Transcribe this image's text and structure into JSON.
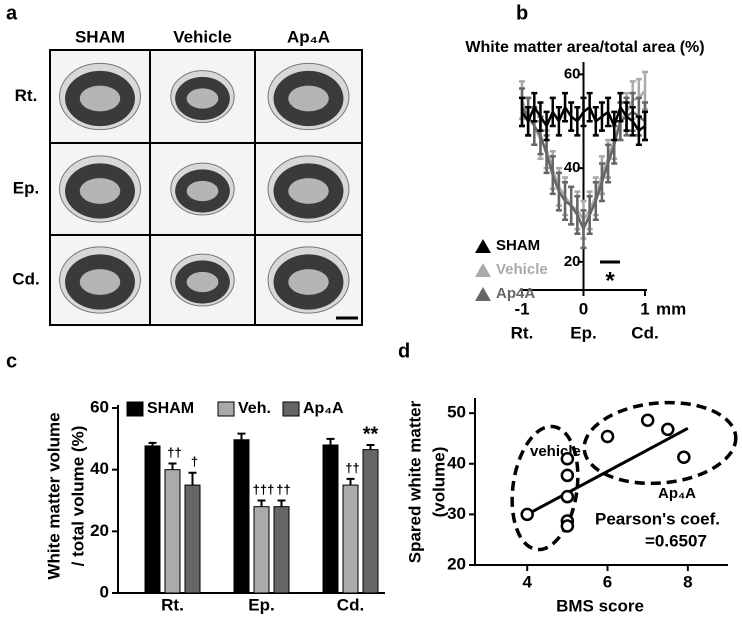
{
  "figure": {
    "panel_labels": [
      "a",
      "b",
      "c",
      "d"
    ],
    "micrographs": {
      "columns": [
        "SHAM",
        "Vehicle",
        "Ap₄A"
      ],
      "rows": [
        "Rt.",
        "Ep.",
        "Cd."
      ]
    }
  },
  "chart_data": [
    {
      "type": "line",
      "title": "White matter area/total area (%)",
      "x": [
        -1,
        -0.9,
        -0.8,
        -0.7,
        -0.6,
        -0.5,
        -0.4,
        -0.3,
        -0.2,
        -0.1,
        0,
        0.1,
        0.2,
        0.3,
        0.4,
        0.5,
        0.6,
        0.7,
        0.8,
        0.9,
        1
      ],
      "xlim": [
        -1,
        1
      ],
      "xticks": [
        -1,
        0,
        1
      ],
      "xlabel": "mm",
      "x_region_labels": [
        "Rt.",
        "Ep.",
        "Cd."
      ],
      "ylim": [
        14,
        62
      ],
      "yticks": [
        20,
        40,
        60
      ],
      "annotation": "*",
      "series": [
        {
          "name": "SHAM",
          "color": "#000000",
          "values": [
            52,
            50,
            53,
            51,
            49,
            52,
            50,
            53,
            51,
            50,
            52,
            53,
            50,
            51,
            52,
            49,
            53,
            51,
            50,
            48,
            49
          ],
          "errors": [
            3,
            3,
            3,
            3,
            3,
            3,
            3,
            3,
            3,
            3,
            3,
            3,
            3,
            3,
            3,
            3,
            3,
            3,
            3,
            3,
            3
          ]
        },
        {
          "name": "Vehicle",
          "color": "#aaaaaa",
          "values": [
            54.5,
            51,
            49,
            46,
            44,
            39.6,
            36,
            34,
            32,
            31,
            29,
            31,
            34,
            38.5,
            42,
            46,
            50,
            52,
            54.5,
            55,
            56.5
          ],
          "errors": [
            4,
            4,
            4,
            4,
            4,
            4,
            4,
            4,
            4,
            4,
            4,
            4,
            4,
            4,
            4,
            4,
            4,
            4,
            4,
            4,
            4
          ]
        },
        {
          "name": "Ap4A",
          "color": "#666666",
          "values": [
            53,
            51,
            49,
            47,
            43,
            38.5,
            35,
            33,
            32,
            30,
            27,
            30,
            33,
            37,
            41,
            45,
            50,
            51,
            52,
            51,
            50
          ],
          "errors": [
            4,
            4,
            4,
            4,
            4,
            4,
            4,
            4,
            4,
            4,
            4,
            4,
            4,
            4,
            4,
            4,
            4,
            4,
            4,
            4,
            4
          ]
        }
      ]
    },
    {
      "type": "bar",
      "ylabel": [
        "White matter volume",
        "/ total volume (%)"
      ],
      "categories": [
        "Rt.",
        "Ep.",
        "Cd."
      ],
      "ylim": [
        0,
        60
      ],
      "yticks": [
        0,
        20,
        40,
        60
      ],
      "series": [
        {
          "name": "SHAM",
          "color": "#000000",
          "values": [
            47.7,
            49.7,
            48
          ],
          "errors": [
            1,
            2,
            2
          ],
          "significance": [
            null,
            null,
            null
          ]
        },
        {
          "name": "Veh.",
          "color": "#aaaaaa",
          "values": [
            40,
            28,
            35
          ],
          "errors": [
            2,
            2,
            2
          ],
          "significance": [
            "††",
            "†††",
            "††"
          ]
        },
        {
          "name": "Ap₄A",
          "color": "#666666",
          "values": [
            35,
            28,
            46.5
          ],
          "errors": [
            4,
            2,
            1.5
          ],
          "significance": [
            "†",
            "††",
            "**"
          ]
        }
      ]
    },
    {
      "type": "scatter",
      "xlabel": "BMS score",
      "ylabel": [
        "Spared white matter",
        "(volume)"
      ],
      "xlim": [
        2.7,
        9
      ],
      "xticks": [
        4,
        6,
        8
      ],
      "ylim": [
        20,
        53
      ],
      "yticks": [
        20,
        30,
        40,
        50
      ],
      "x": [
        4,
        5,
        5,
        5,
        5,
        5,
        6,
        7,
        7.5,
        7.9
      ],
      "y": [
        30,
        41,
        37.7,
        33.5,
        28.7,
        27.7,
        45.4,
        48.6,
        46.8,
        41.3
      ],
      "fit_line": {
        "x": [
          4,
          8
        ],
        "y": [
          30,
          47
        ]
      },
      "groups": [
        "vehicle",
        "Ap₄A"
      ],
      "annotation": [
        "Pearson's coef.",
        "=0.6507"
      ]
    }
  ]
}
